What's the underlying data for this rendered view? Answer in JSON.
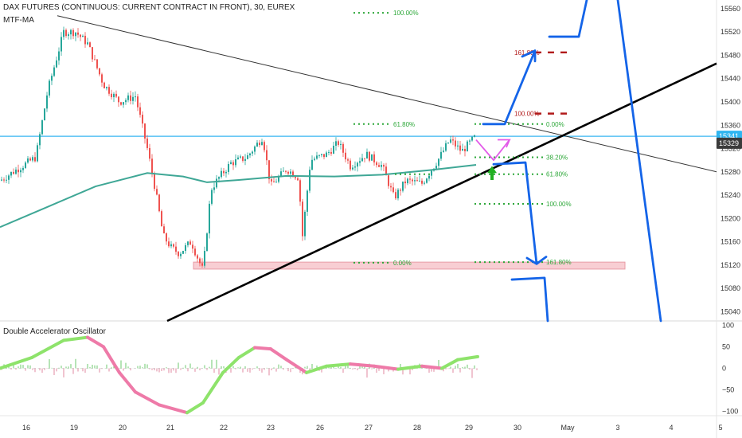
{
  "chart_data": {
    "type": "candlestick",
    "title": "DAX FUTURES (CONTINUOUS: CURRENT CONTRACT IN FRONT), 30, EUREX",
    "indicator_main": "MTF-MA",
    "indicator_osc": "Double Accelerator Oscillator",
    "price_axis": {
      "ticks": [
        15560,
        15520,
        15480,
        15440,
        15400,
        15360,
        15320,
        15280,
        15240,
        15200,
        15160,
        15120,
        15080,
        15040
      ],
      "range": [
        15024,
        15575
      ]
    },
    "osc_axis": {
      "ticks": [
        100,
        50,
        0,
        -50,
        -100
      ],
      "labels": [
        "100",
        "50",
        "0",
        "−50",
        "−100"
      ],
      "range": [
        -110,
        110
      ]
    },
    "x_axis_labels": [
      "16",
      "19",
      "20",
      "21",
      "22",
      "23",
      "26",
      "27",
      "28",
      "29",
      "30",
      "May",
      "3",
      "4",
      "5"
    ],
    "badges": [
      {
        "text": "15341",
        "value": 15341,
        "color": "#2fb5f0"
      },
      {
        "text": "15329",
        "value": 15329,
        "color": "#3b3b3b"
      }
    ],
    "horizontal_line": {
      "value": 15341,
      "color": "#38b6f2"
    },
    "fib_upper": [
      {
        "label": "161.80%",
        "value": 15485
      },
      {
        "label": "100.00%",
        "value": 15380
      },
      {
        "label": "0.00%",
        "value": 15362
      }
    ],
    "fib_lower": [
      {
        "label": "38.20%",
        "value": 15305
      },
      {
        "label": "61.80%",
        "value": 15276
      },
      {
        "label": "100.00%",
        "value": 15225
      },
      {
        "label": "161.80%",
        "value": 15125
      }
    ],
    "fib_left": [
      {
        "label": "100.00%",
        "value": 15553
      },
      {
        "label": "61.80%",
        "value": 15362
      },
      {
        "label": "0.00%",
        "value": 15124
      }
    ],
    "fib_small": [
      {
        "label": "61.80%",
        "value": 15276
      }
    ],
    "projection_color": "#1464e8",
    "trendline_color": "#000000",
    "ma_color": "#3fa796",
    "zone": {
      "from": 15113,
      "to": 15125,
      "color": "#f7c6cc"
    }
  }
}
